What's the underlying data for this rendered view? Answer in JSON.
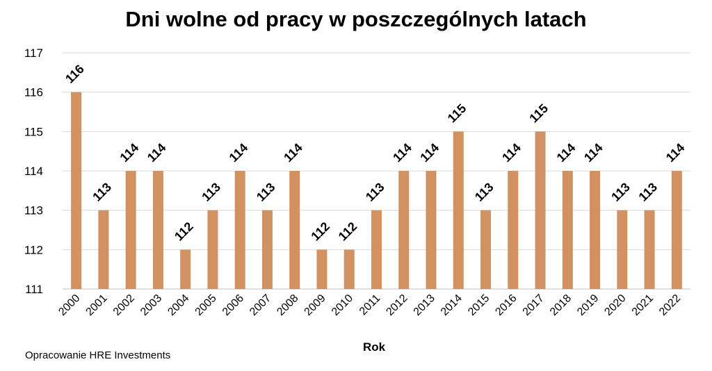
{
  "chart_data": {
    "type": "bar",
    "title": "Dni wolne od pracy w poszczególnych latach",
    "xlabel": "Rok",
    "ylabel": "",
    "categories": [
      "2000",
      "2001",
      "2002",
      "2003",
      "2004",
      "2005",
      "2006",
      "2007",
      "2008",
      "2009",
      "2010",
      "2011",
      "2012",
      "2013",
      "2014",
      "2015",
      "2016",
      "2017",
      "2018",
      "2019",
      "2020",
      "2021",
      "2022"
    ],
    "values": [
      116,
      113,
      114,
      114,
      112,
      113,
      114,
      113,
      114,
      112,
      112,
      113,
      114,
      114,
      115,
      113,
      114,
      115,
      114,
      114,
      113,
      113,
      114
    ],
    "ylim": [
      111,
      117
    ],
    "yticks": [
      111,
      112,
      113,
      114,
      115,
      116,
      117
    ],
    "grid": true,
    "data_labels": true,
    "bar_color": "#D19161",
    "grid_color": "#D9D9D9"
  },
  "footer": {
    "source": "Opracowanie HRE Investments"
  }
}
